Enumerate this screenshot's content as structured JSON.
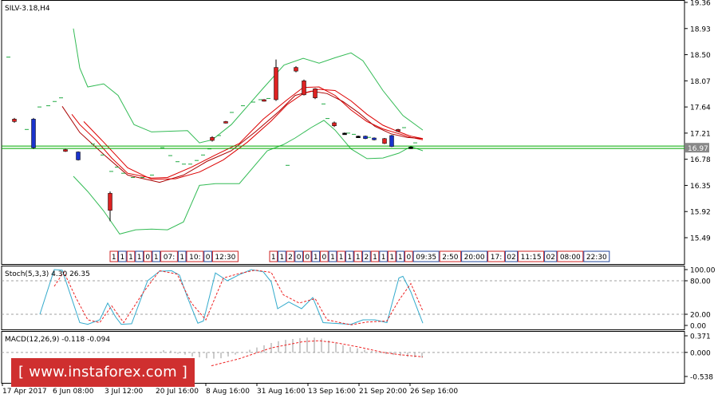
{
  "symbol_label": "SILV-3.18,H4",
  "watermark_text": "[ www.instaforex.com ]",
  "colors": {
    "background": "#ffffff",
    "frame": "#000000",
    "grid_dash": "#a0a0a0",
    "up_candle": "#dd2222",
    "down_candle": "#1a33cc",
    "doji": "#000000",
    "bollinger": "#33bb55",
    "ma_red": "#dd0000",
    "ma_red_dark": "#aa0000",
    "parabolic_sar": "#22aa44",
    "price_line": "#00aa00",
    "price_box": "#888888",
    "stoch_main": "#33aacc",
    "stoch_signal": "#ee2222",
    "macd_hist": "#999999",
    "macd_signal": "#ee2222",
    "session_box_up": "#cc2222",
    "session_box_down": "#224499",
    "watermark_bg": "#cf2f2f"
  },
  "chart_data": [
    {
      "type": "candlestick",
      "title": "SILV-3.18,H4",
      "y_ticks": [
        "19.36",
        "18.93",
        "18.50",
        "18.07",
        "17.64",
        "17.21",
        "16.78",
        "16.35",
        "15.92",
        "15.49"
      ],
      "ylim": [
        15.3,
        19.36
      ],
      "current_price": "16.97",
      "x_ticks": [
        "17 Apr 2017",
        "6 Jun 08:00",
        "3 Jul 12:00",
        "20 Jul 16:00",
        "8 Aug 16:00",
        "31 Aug 16:00",
        "13 Sep 16:00",
        "21 Sep 20:00",
        "26 Sep 16:00"
      ],
      "candles": [
        {
          "x": 18,
          "o": 17.44,
          "c": 17.4,
          "h": 17.46,
          "l": 17.38,
          "dir": "up"
        },
        {
          "x": 42,
          "o": 17.44,
          "c": 16.97,
          "h": 17.46,
          "l": 16.95,
          "dir": "down"
        },
        {
          "x": 82,
          "o": 16.94,
          "c": 16.91,
          "h": 16.95,
          "l": 16.9,
          "dir": "up"
        },
        {
          "x": 98,
          "o": 16.9,
          "c": 16.77,
          "h": 16.91,
          "l": 16.76,
          "dir": "down"
        },
        {
          "x": 138,
          "o": 16.22,
          "c": 15.94,
          "h": 16.25,
          "l": 15.76,
          "dir": "up"
        },
        {
          "x": 266,
          "o": 17.14,
          "c": 17.09,
          "h": 17.16,
          "l": 17.07,
          "dir": "up"
        },
        {
          "x": 283,
          "o": 17.4,
          "c": 17.38,
          "h": 17.41,
          "l": 17.37,
          "dir": "up"
        },
        {
          "x": 331,
          "o": 17.76,
          "c": 17.74,
          "h": 17.77,
          "l": 17.73,
          "dir": "up"
        },
        {
          "x": 346,
          "o": 17.76,
          "c": 18.29,
          "h": 18.42,
          "l": 17.74,
          "dir": "up"
        },
        {
          "x": 371,
          "o": 18.29,
          "c": 18.23,
          "h": 18.31,
          "l": 18.21,
          "dir": "up"
        },
        {
          "x": 381,
          "o": 18.07,
          "c": 17.84,
          "h": 18.09,
          "l": 17.83,
          "dir": "up"
        },
        {
          "x": 395,
          "o": 17.94,
          "c": 17.79,
          "h": 17.95,
          "l": 17.77,
          "dir": "up"
        },
        {
          "x": 419,
          "o": 17.38,
          "c": 17.33,
          "h": 17.4,
          "l": 17.31,
          "dir": "up"
        },
        {
          "x": 432,
          "o": 17.21,
          "c": 17.2,
          "h": 17.22,
          "l": 17.19,
          "dir": "doji"
        },
        {
          "x": 449,
          "o": 17.16,
          "c": 17.15,
          "h": 17.17,
          "l": 17.14,
          "dir": "doji"
        },
        {
          "x": 458,
          "o": 17.16,
          "c": 17.12,
          "h": 17.17,
          "l": 17.11,
          "dir": "down"
        },
        {
          "x": 469,
          "o": 17.13,
          "c": 17.1,
          "h": 17.14,
          "l": 17.09,
          "dir": "down"
        },
        {
          "x": 482,
          "o": 17.12,
          "c": 17.04,
          "h": 17.13,
          "l": 17.03,
          "dir": "up"
        },
        {
          "x": 491,
          "o": 17.17,
          "c": 16.99,
          "h": 17.18,
          "l": 16.98,
          "dir": "down"
        },
        {
          "x": 499,
          "o": 17.27,
          "c": 17.24,
          "h": 17.28,
          "l": 17.23,
          "dir": "up"
        },
        {
          "x": 515,
          "o": 16.98,
          "c": 16.96,
          "h": 16.99,
          "l": 16.95,
          "dir": "doji"
        }
      ],
      "bollinger_upper": [
        [
          92,
          18.93
        ],
        [
          100,
          18.28
        ],
        [
          110,
          17.97
        ],
        [
          130,
          18.02
        ],
        [
          148,
          17.83
        ],
        [
          168,
          17.35
        ],
        [
          190,
          17.23
        ],
        [
          210,
          17.24
        ],
        [
          235,
          17.25
        ],
        [
          250,
          17.05
        ],
        [
          266,
          17.1
        ],
        [
          290,
          17.35
        ],
        [
          330,
          17.95
        ],
        [
          356,
          18.33
        ],
        [
          380,
          18.44
        ],
        [
          400,
          18.36
        ],
        [
          420,
          18.45
        ],
        [
          440,
          18.53
        ],
        [
          455,
          18.4
        ],
        [
          480,
          17.91
        ],
        [
          505,
          17.5
        ],
        [
          530,
          17.26
        ]
      ],
      "bollinger_lower": [
        [
          92,
          16.5
        ],
        [
          110,
          16.25
        ],
        [
          130,
          15.93
        ],
        [
          150,
          15.55
        ],
        [
          170,
          15.62
        ],
        [
          190,
          15.63
        ],
        [
          210,
          15.62
        ],
        [
          230,
          15.75
        ],
        [
          250,
          16.35
        ],
        [
          270,
          16.38
        ],
        [
          300,
          16.38
        ],
        [
          335,
          16.92
        ],
        [
          355,
          17.02
        ],
        [
          370,
          17.13
        ],
        [
          390,
          17.3
        ],
        [
          406,
          17.42
        ],
        [
          420,
          17.26
        ],
        [
          440,
          16.95
        ],
        [
          460,
          16.79
        ],
        [
          480,
          16.8
        ],
        [
          500,
          16.88
        ],
        [
          515,
          16.99
        ],
        [
          530,
          16.92
        ]
      ],
      "ma_fast": [
        [
          90,
          17.52
        ],
        [
          100,
          17.35
        ],
        [
          120,
          17.1
        ],
        [
          140,
          16.8
        ],
        [
          160,
          16.55
        ],
        [
          190,
          16.47
        ],
        [
          210,
          16.48
        ],
        [
          240,
          16.65
        ],
        [
          270,
          16.85
        ],
        [
          300,
          17.04
        ],
        [
          330,
          17.44
        ],
        [
          360,
          17.76
        ],
        [
          380,
          17.96
        ],
        [
          400,
          17.97
        ],
        [
          420,
          17.83
        ],
        [
          440,
          17.59
        ],
        [
          460,
          17.4
        ],
        [
          480,
          17.28
        ],
        [
          500,
          17.2
        ],
        [
          515,
          17.14
        ],
        [
          530,
          17.1
        ]
      ],
      "ma_mid": [
        [
          78,
          17.65
        ],
        [
          100,
          17.22
        ],
        [
          130,
          16.86
        ],
        [
          160,
          16.52
        ],
        [
          200,
          16.4
        ],
        [
          230,
          16.52
        ],
        [
          260,
          16.75
        ],
        [
          290,
          16.92
        ],
        [
          320,
          17.23
        ],
        [
          350,
          17.57
        ],
        [
          370,
          17.83
        ],
        [
          390,
          17.9
        ],
        [
          410,
          17.86
        ],
        [
          430,
          17.73
        ],
        [
          450,
          17.54
        ],
        [
          470,
          17.32
        ],
        [
          490,
          17.2
        ],
        [
          510,
          17.14
        ],
        [
          530,
          17.12
        ]
      ],
      "ma_slow": [
        [
          105,
          17.4
        ],
        [
          130,
          17.06
        ],
        [
          160,
          16.64
        ],
        [
          190,
          16.45
        ],
        [
          220,
          16.46
        ],
        [
          250,
          16.57
        ],
        [
          280,
          16.77
        ],
        [
          310,
          17.06
        ],
        [
          340,
          17.41
        ],
        [
          360,
          17.68
        ],
        [
          380,
          17.86
        ],
        [
          400,
          17.93
        ],
        [
          420,
          17.91
        ],
        [
          440,
          17.74
        ],
        [
          460,
          17.52
        ],
        [
          480,
          17.34
        ],
        [
          500,
          17.23
        ],
        [
          515,
          17.16
        ],
        [
          530,
          17.12
        ]
      ],
      "parabolic_sar": [
        [
          10,
          18.46
        ],
        [
          33,
          17.27
        ],
        [
          49,
          17.64
        ],
        [
          60,
          17.66
        ],
        [
          68,
          17.73
        ],
        [
          76,
          17.79
        ],
        [
          116,
          17.03
        ],
        [
          128,
          16.85
        ],
        [
          139,
          16.58
        ],
        [
          146,
          16.65
        ],
        [
          154,
          16.55
        ],
        [
          166,
          16.48
        ],
        [
          178,
          16.48
        ],
        [
          190,
          16.52
        ],
        [
          203,
          16.97
        ],
        [
          213,
          16.84
        ],
        [
          222,
          16.74
        ],
        [
          230,
          16.7
        ],
        [
          238,
          16.7
        ],
        [
          246,
          16.76
        ],
        [
          254,
          16.85
        ],
        [
          262,
          16.95
        ],
        [
          274,
          17.17
        ],
        [
          290,
          17.55
        ],
        [
          304,
          17.66
        ],
        [
          317,
          17.72
        ],
        [
          326,
          17.76
        ],
        [
          336,
          17.78
        ],
        [
          360,
          16.68
        ],
        [
          405,
          17.69
        ],
        [
          410,
          17.45
        ],
        [
          436,
          17.21
        ],
        [
          443,
          17.19
        ],
        [
          462,
          17.14
        ],
        [
          506,
          17.3
        ],
        [
          520,
          17.05
        ]
      ]
    },
    {
      "type": "line",
      "title": "Stoch(5,3,3) 4.30 26.35",
      "y_ticks": [
        "100.00",
        "80.00",
        "20.00",
        "0.00"
      ],
      "levels": [
        80,
        20
      ],
      "ylim": [
        0,
        100
      ],
      "series": [
        {
          "name": "main",
          "points": [
            [
              50,
              20
            ],
            [
              68,
              100
            ],
            [
              78,
              99
            ],
            [
              100,
              5
            ],
            [
              110,
              2
            ],
            [
              125,
              10
            ],
            [
              135,
              40
            ],
            [
              145,
              15
            ],
            [
              152,
              2
            ],
            [
              165,
              3
            ],
            [
              185,
              80
            ],
            [
              200,
              97
            ],
            [
              215,
              98
            ],
            [
              225,
              90
            ],
            [
              235,
              50
            ],
            [
              248,
              4
            ],
            [
              255,
              8
            ],
            [
              270,
              94
            ],
            [
              285,
              80
            ],
            [
              300,
              91
            ],
            [
              315,
              100
            ],
            [
              330,
              96
            ],
            [
              340,
              78
            ],
            [
              348,
              30
            ],
            [
              362,
              42
            ],
            [
              378,
              30
            ],
            [
              392,
              50
            ],
            [
              405,
              5
            ],
            [
              440,
              2
            ],
            [
              455,
              10
            ],
            [
              470,
              10
            ],
            [
              485,
              5
            ],
            [
              500,
              85
            ],
            [
              505,
              88
            ],
            [
              515,
              60
            ],
            [
              530,
              4
            ]
          ]
        },
        {
          "name": "signal",
          "points": [
            [
              68,
              70
            ],
            [
              80,
              96
            ],
            [
              95,
              50
            ],
            [
              110,
              10
            ],
            [
              125,
              5
            ],
            [
              140,
              35
            ],
            [
              155,
              5
            ],
            [
              180,
              60
            ],
            [
              200,
              98
            ],
            [
              222,
              92
            ],
            [
              240,
              40
            ],
            [
              258,
              10
            ],
            [
              280,
              85
            ],
            [
              300,
              93
            ],
            [
              320,
              99
            ],
            [
              340,
              95
            ],
            [
              355,
              55
            ],
            [
              375,
              40
            ],
            [
              395,
              48
            ],
            [
              410,
              10
            ],
            [
              440,
              1
            ],
            [
              460,
              6
            ],
            [
              485,
              8
            ],
            [
              500,
              45
            ],
            [
              515,
              75
            ],
            [
              530,
              26
            ]
          ]
        }
      ]
    },
    {
      "type": "bar",
      "title": "MACD(12,26,9) -0.118 -0.094",
      "y_ticks": [
        "0.371",
        "0.000",
        "-0.538"
      ],
      "ylim": [
        -0.538,
        0.371
      ],
      "histogram_x": [
        205,
        214,
        223,
        232,
        241,
        250,
        259,
        268,
        277,
        286,
        295,
        304,
        313,
        322,
        331,
        340,
        349,
        358,
        367,
        376,
        385,
        394,
        403,
        412,
        421,
        430,
        439,
        448,
        457,
        466,
        475,
        484,
        493,
        502,
        511,
        520,
        529
      ],
      "histogram": [
        0.05,
        0.04,
        -0.03,
        -0.05,
        -0.09,
        -0.11,
        -0.13,
        -0.14,
        -0.13,
        -0.09,
        -0.05,
        0.0,
        0.06,
        0.11,
        0.16,
        0.21,
        0.25,
        0.28,
        0.3,
        0.32,
        0.33,
        0.33,
        0.31,
        0.27,
        0.22,
        0.16,
        0.12,
        0.09,
        0.06,
        0.03,
        -0.01,
        -0.04,
        -0.06,
        -0.08,
        -0.1,
        -0.11,
        -0.12
      ],
      "signal": [
        [
          265,
          -0.3
        ],
        [
          300,
          -0.14
        ],
        [
          340,
          0.1
        ],
        [
          380,
          0.24
        ],
        [
          400,
          0.26
        ],
        [
          420,
          0.22
        ],
        [
          450,
          0.12
        ],
        [
          480,
          0.0
        ],
        [
          500,
          -0.05
        ],
        [
          530,
          -0.1
        ]
      ]
    }
  ],
  "session_labels_left": [
    "1",
    "1",
    "1",
    "1",
    "0",
    "1",
    "07:",
    "1",
    "10:",
    "0",
    "12:30"
  ],
  "session_labels_right": [
    "1",
    "1",
    "2",
    "0",
    "0",
    "1",
    "0",
    "1",
    "1",
    "1",
    "1",
    "2",
    "1",
    "1",
    "1",
    "1",
    "0",
    "09:35",
    "2:50",
    "20:00",
    "17:",
    "02",
    "11:15",
    "02",
    "08:00",
    "22:30"
  ]
}
